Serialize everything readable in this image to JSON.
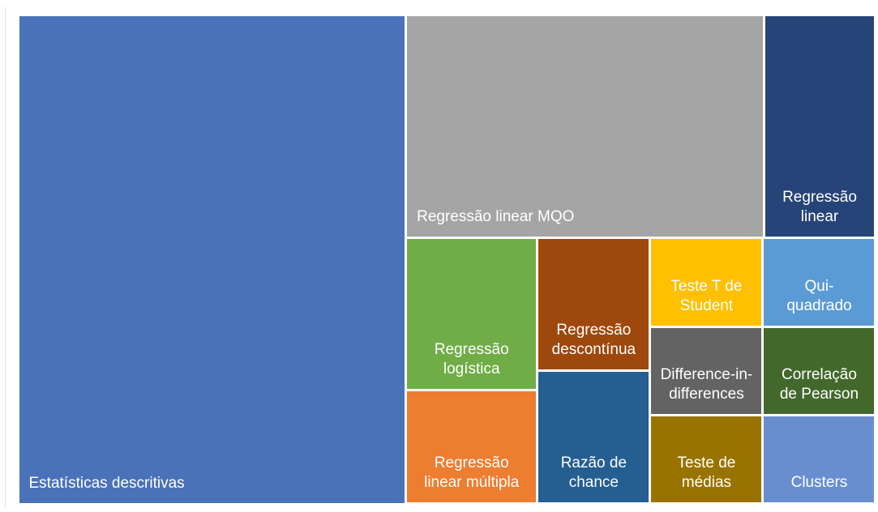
{
  "chart_data": {
    "type": "treemap",
    "categories": [
      "Estatísticas descritivas",
      "Regressão linear MQO",
      "Regressão linear",
      "Regressão logística",
      "Regressão linear múltipla",
      "Regressão descontínua",
      "Razão de chance",
      "Teste T de Student",
      "Difference-in-differences",
      "Teste de médias",
      "Qui-quadrado",
      "Correlação de Pearson",
      "Clusters"
    ],
    "values": [
      38,
      16,
      5,
      4,
      3,
      3,
      3,
      2,
      2,
      2,
      2,
      2,
      2
    ],
    "colors": [
      "#4a72b8",
      "#a5a5a5",
      "#264478",
      "#70ad47",
      "#ed7d31",
      "#9e480e",
      "#255e91",
      "#ffc000",
      "#636363",
      "#997300",
      "#5b9bd5",
      "#43682b",
      "#698ed0"
    ]
  }
}
